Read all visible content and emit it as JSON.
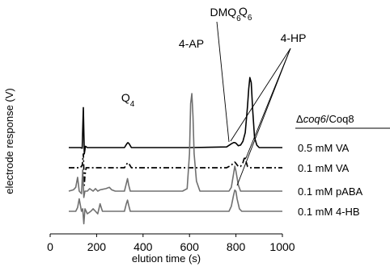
{
  "chart_data": {
    "type": "line",
    "title": "",
    "xlabel": "elution time (s)",
    "ylabel": "electrode response (V)",
    "xlim": [
      0,
      1000
    ],
    "xticks": [
      "0",
      "200",
      "400",
      "600",
      "800",
      "1000"
    ],
    "legend_title": "Δcoq6/Coq8",
    "legend_title_italic_part": "coq6",
    "series": [
      {
        "name": "0.5 mM VA",
        "color": "#000000",
        "style": "solid",
        "x": [
          80,
          130,
          138,
          143,
          147,
          152,
          160,
          200,
          320,
          330,
          335,
          340,
          350,
          600,
          760,
          780,
          790,
          795,
          800,
          810,
          820,
          830,
          840,
          850,
          855,
          860,
          866,
          872,
          880,
          890,
          900,
          1000
        ],
        "y": [
          0,
          0,
          -0.005,
          0.32,
          -0.05,
          0.01,
          0.0,
          0.0,
          0.0,
          0.03,
          0.04,
          0.03,
          0.0,
          0.0,
          0.005,
          0.03,
          0.04,
          0.04,
          0.035,
          0.015,
          0.02,
          0.05,
          0.12,
          0.33,
          0.47,
          0.56,
          0.52,
          0.3,
          0.08,
          0.02,
          0.0,
          0.0
        ]
      },
      {
        "name": "0.1 mM VA",
        "color": "#000000",
        "style": "dashed",
        "x": [
          80,
          130,
          138,
          143,
          147,
          150,
          155,
          320,
          330,
          335,
          340,
          350,
          760,
          780,
          790,
          795,
          800,
          810,
          820,
          830,
          838,
          845,
          850,
          860,
          880,
          1000
        ],
        "y": [
          0,
          0,
          0.02,
          0.11,
          -0.14,
          -0.06,
          0.0,
          0.0,
          0.03,
          0.04,
          0.03,
          0.0,
          0.0,
          0.02,
          0.04,
          0.045,
          0.035,
          0.01,
          0.01,
          0.04,
          0.09,
          0.04,
          0.01,
          0.0,
          0.0,
          0.0
        ]
      },
      {
        "name": "0.1 mM pABA",
        "color": "#707070",
        "style": "solid",
        "x": [
          80,
          100,
          110,
          118,
          125,
          135,
          140,
          145,
          150,
          160,
          170,
          185,
          195,
          205,
          215,
          240,
          255,
          265,
          280,
          320,
          328,
          333,
          338,
          345,
          570,
          590,
          600,
          605,
          610,
          615,
          620,
          630,
          645,
          770,
          780,
          790,
          795,
          800,
          810,
          820,
          1000
        ],
        "y": [
          0,
          0.01,
          0.03,
          0.11,
          0.0,
          -0.02,
          0.17,
          -0.05,
          0.0,
          0.0,
          0.02,
          0.0,
          0.02,
          0.0,
          0.01,
          0.02,
          0.03,
          0.01,
          0.0,
          0.0,
          0.06,
          0.1,
          0.05,
          0.0,
          0.0,
          0.02,
          0.3,
          0.7,
          0.78,
          0.6,
          0.3,
          0.08,
          0.0,
          0.0,
          0.03,
          0.14,
          0.2,
          0.16,
          0.05,
          0.0,
          0.0
        ]
      },
      {
        "name": "0.1 mM 4-HB",
        "color": "#707070",
        "style": "solid",
        "x": [
          80,
          110,
          118,
          125,
          135,
          140,
          145,
          150,
          155,
          160,
          175,
          185,
          195,
          205,
          215,
          225,
          240,
          320,
          328,
          333,
          338,
          345,
          770,
          780,
          790,
          795,
          800,
          805,
          815,
          825,
          1000
        ],
        "y": [
          0,
          0,
          0.03,
          0.1,
          0.0,
          0.02,
          -0.1,
          0.02,
          0.0,
          -0.02,
          0.0,
          0.02,
          0.0,
          -0.02,
          0.06,
          0.0,
          0.0,
          0.0,
          0.06,
          0.09,
          0.05,
          0.0,
          0.0,
          0.04,
          0.13,
          0.17,
          0.16,
          0.1,
          0.02,
          0.0,
          0.0
        ]
      }
    ],
    "annotations": [
      {
        "text": "Q",
        "subscript": "4",
        "x": 335
      },
      {
        "text": "4-AP",
        "x": 608
      },
      {
        "text": "DMQ",
        "subscript": "6",
        "x": 793
      },
      {
        "text": "Q",
        "subscript": "6",
        "x": 858
      },
      {
        "text": "4-HP",
        "x": 800
      }
    ]
  }
}
